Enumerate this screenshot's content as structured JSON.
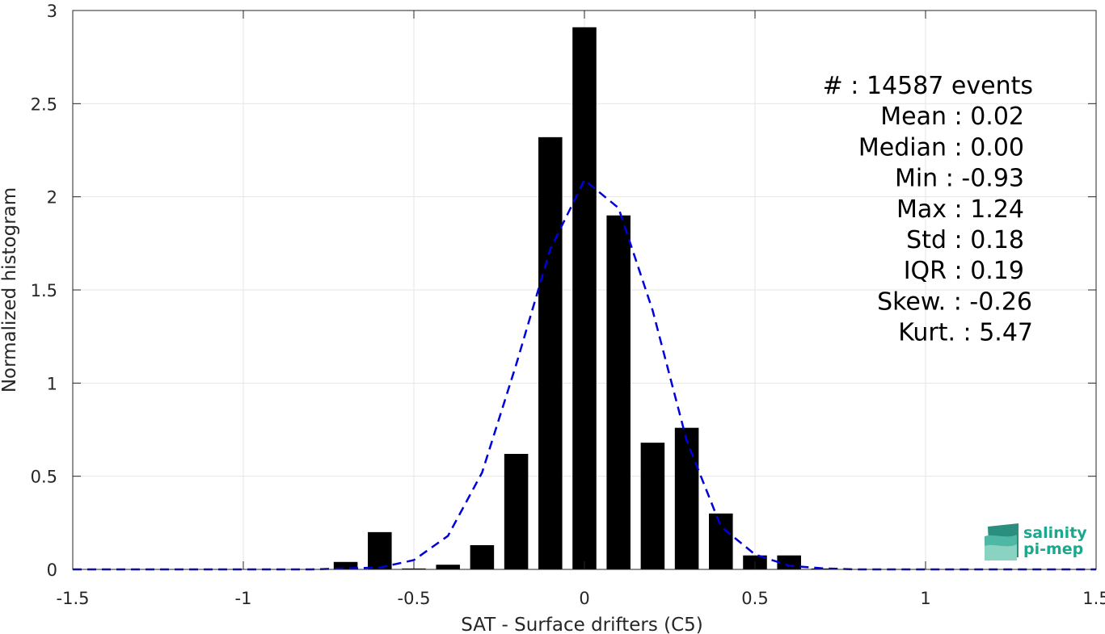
{
  "chart_data": {
    "type": "bar",
    "xlabel": "SAT - Surface drifters (C5)",
    "ylabel": "Normalized histogram",
    "xlim": [
      -1.5,
      1.5
    ],
    "ylim": [
      0,
      3
    ],
    "xticks": [
      -1.5,
      -1,
      -0.5,
      0,
      0.5,
      1,
      1.5
    ],
    "xtick_labels": [
      "-1.5",
      "-1",
      "-0.5",
      "0",
      "0.5",
      "1",
      "1.5"
    ],
    "yticks": [
      0,
      0.5,
      1,
      1.5,
      2,
      2.5,
      3
    ],
    "ytick_labels": [
      "0",
      "0.5",
      "1",
      "1.5",
      "2",
      "2.5",
      "3"
    ],
    "grid": true,
    "bar_width": 0.07,
    "bars": {
      "x": [
        -0.7,
        -0.6,
        -0.5,
        -0.4,
        -0.3,
        -0.2,
        -0.1,
        0.0,
        0.1,
        0.2,
        0.3,
        0.4,
        0.5,
        0.6,
        0.7
      ],
      "values": [
        0.04,
        0.2,
        0.005,
        0.025,
        0.13,
        0.62,
        2.32,
        2.91,
        1.9,
        0.68,
        0.76,
        0.3,
        0.075,
        0.075,
        0.005
      ],
      "color": "#000000"
    },
    "fit_curve": {
      "style": "dashed",
      "color": "#0000dd",
      "x": [
        -1.5,
        -1.4,
        -1.3,
        -1.2,
        -1.1,
        -1.0,
        -0.9,
        -0.8,
        -0.7,
        -0.6,
        -0.5,
        -0.4,
        -0.3,
        -0.2,
        -0.1,
        0.0,
        0.1,
        0.2,
        0.3,
        0.4,
        0.5,
        0.6,
        0.7,
        0.8,
        0.9,
        1.0,
        1.1,
        1.2,
        1.3,
        1.4,
        1.5
      ],
      "y": [
        0,
        0,
        0,
        0,
        0,
        0,
        0,
        0,
        0.005,
        0.01,
        0.05,
        0.18,
        0.52,
        1.1,
        1.72,
        2.09,
        1.94,
        1.39,
        0.69,
        0.23,
        0.08,
        0.02,
        0.005,
        0,
        0,
        0,
        0,
        0,
        0,
        0,
        0
      ]
    },
    "stats": [
      "#  : 14587 events",
      "Mean : 0.02",
      "Median : 0.00",
      "Min : -0.93",
      "Max : 1.24",
      "Std : 0.18",
      "IQR : 0.19",
      "Skew. : -0.26",
      "Kurt. : 5.47"
    ]
  },
  "logo": {
    "line1": "salinity",
    "line2": "pi-mep",
    "color": "#1aa88e"
  }
}
